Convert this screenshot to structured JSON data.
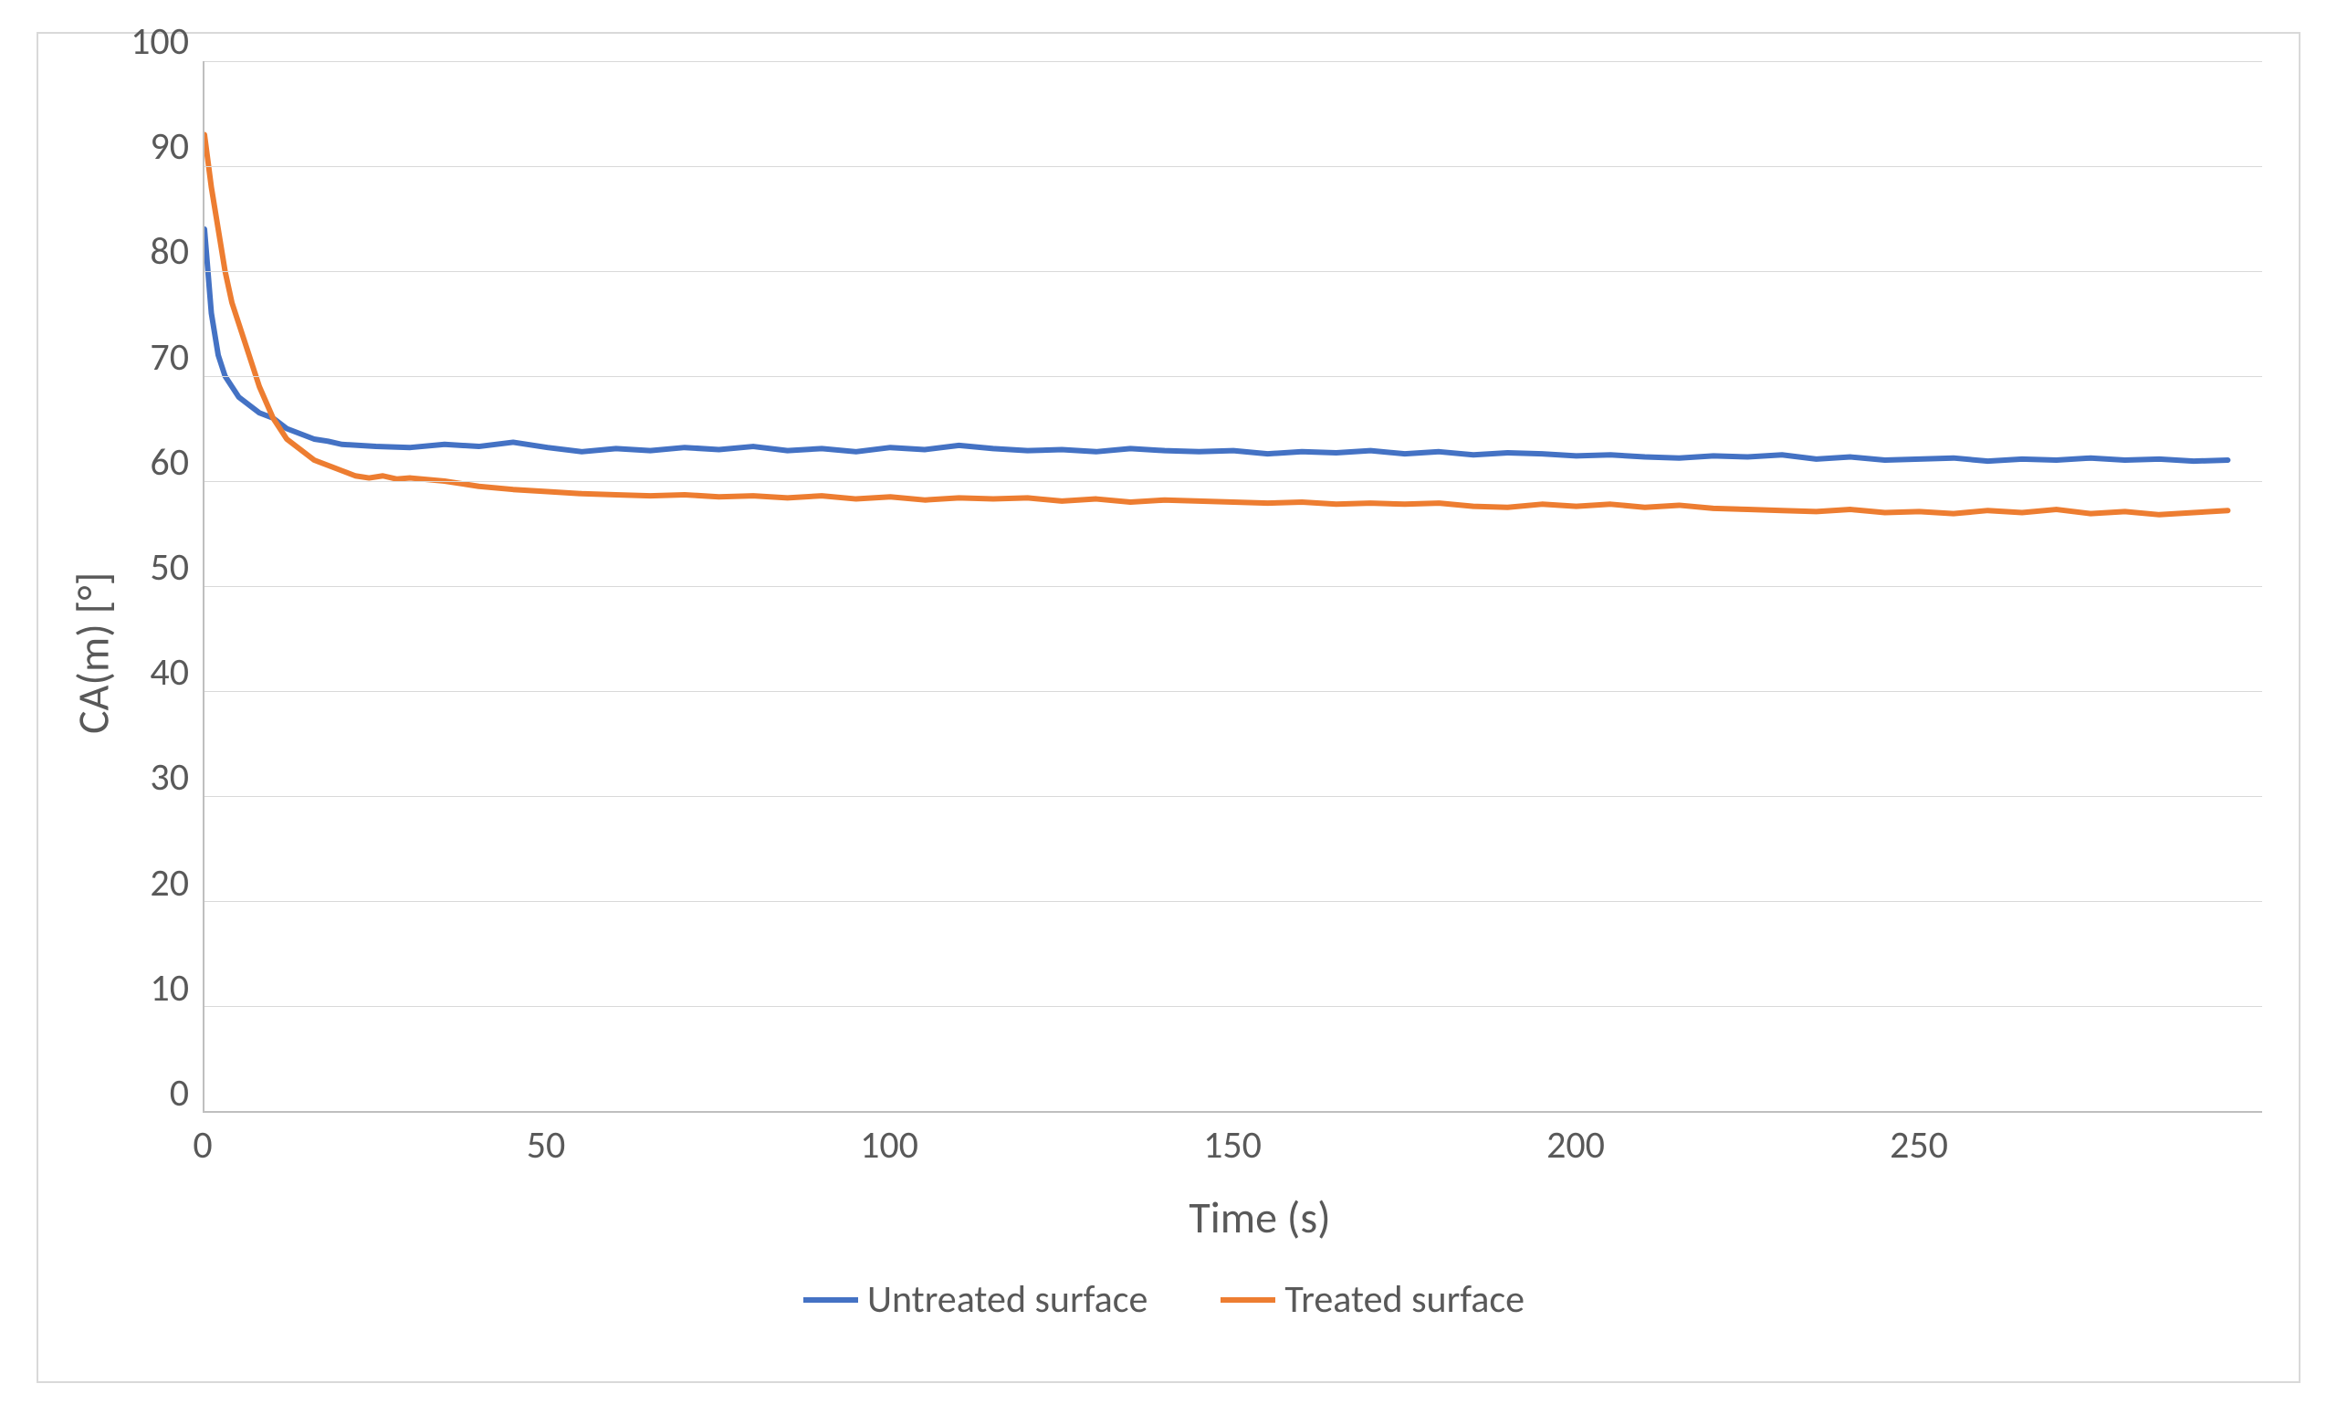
{
  "chart": {
    "type": "line",
    "xlabel": "Time (s)",
    "ylabel": "CA(m) [°]",
    "xlim": [
      0,
      300
    ],
    "ylim": [
      0,
      100
    ],
    "xtick_step": 50,
    "ytick_step": 10,
    "xtick_labels": [
      "0",
      "50",
      "100",
      "150",
      "200",
      "250"
    ],
    "ytick_labels": [
      "0",
      "10",
      "20",
      "30",
      "40",
      "50",
      "60",
      "70",
      "80",
      "90",
      "100"
    ],
    "label_fontsize": 48,
    "tick_fontsize": 42,
    "background_color": "#ffffff",
    "grid_color": "#d9d9d9",
    "border_color": "#d9d9d9",
    "axis_color": "#bfbfbf",
    "text_color": "#595959",
    "line_width": 6,
    "legend_position": "bottom",
    "series": [
      {
        "name": "Untreated surface",
        "color": "#4472c4",
        "x": [
          0,
          1,
          2,
          3,
          4,
          5,
          6,
          7,
          8,
          10,
          12,
          14,
          16,
          18,
          20,
          25,
          30,
          35,
          40,
          45,
          50,
          55,
          60,
          65,
          70,
          75,
          80,
          85,
          90,
          95,
          100,
          105,
          110,
          115,
          120,
          125,
          130,
          135,
          140,
          145,
          150,
          155,
          160,
          165,
          170,
          175,
          180,
          185,
          190,
          195,
          200,
          205,
          210,
          215,
          220,
          225,
          230,
          235,
          240,
          245,
          250,
          255,
          260,
          265,
          270,
          275,
          280,
          285,
          290,
          295
        ],
        "y": [
          84,
          76,
          72,
          70,
          69,
          68,
          67.5,
          67,
          66.5,
          66,
          65,
          64.5,
          64,
          63.8,
          63.5,
          63.3,
          63.2,
          63.5,
          63.3,
          63.7,
          63.2,
          62.8,
          63.1,
          62.9,
          63.2,
          63.0,
          63.3,
          62.9,
          63.1,
          62.8,
          63.2,
          63.0,
          63.4,
          63.1,
          62.9,
          63.0,
          62.8,
          63.1,
          62.9,
          62.8,
          62.9,
          62.6,
          62.8,
          62.7,
          62.9,
          62.6,
          62.8,
          62.5,
          62.7,
          62.6,
          62.4,
          62.5,
          62.3,
          62.2,
          62.4,
          62.3,
          62.5,
          62.1,
          62.3,
          62.0,
          62.1,
          62.2,
          61.9,
          62.1,
          62.0,
          62.2,
          62.0,
          62.1,
          61.9,
          62.0
        ]
      },
      {
        "name": "Treated surface",
        "color": "#ed7d31",
        "x": [
          0,
          1,
          2,
          3,
          4,
          5,
          6,
          7,
          8,
          10,
          12,
          14,
          16,
          18,
          20,
          22,
          24,
          26,
          28,
          30,
          35,
          40,
          45,
          50,
          55,
          60,
          65,
          70,
          75,
          80,
          85,
          90,
          95,
          100,
          105,
          110,
          115,
          120,
          125,
          130,
          135,
          140,
          145,
          150,
          155,
          160,
          165,
          170,
          175,
          180,
          185,
          190,
          195,
          200,
          205,
          210,
          215,
          220,
          225,
          230,
          235,
          240,
          245,
          250,
          255,
          260,
          265,
          270,
          275,
          280,
          285,
          290,
          295
        ],
        "y": [
          93,
          88,
          84,
          80,
          77,
          75,
          73,
          71,
          69,
          66,
          64,
          63,
          62,
          61.5,
          61,
          60.5,
          60.3,
          60.5,
          60.2,
          60.3,
          60.0,
          59.5,
          59.2,
          59.0,
          58.8,
          58.7,
          58.6,
          58.7,
          58.5,
          58.6,
          58.4,
          58.6,
          58.3,
          58.5,
          58.2,
          58.4,
          58.3,
          58.4,
          58.1,
          58.3,
          58.0,
          58.2,
          58.1,
          58.0,
          57.9,
          58.0,
          57.8,
          57.9,
          57.8,
          57.9,
          57.6,
          57.5,
          57.8,
          57.6,
          57.8,
          57.5,
          57.7,
          57.4,
          57.3,
          57.2,
          57.1,
          57.3,
          57.0,
          57.1,
          56.9,
          57.2,
          57.0,
          57.3,
          56.9,
          57.1,
          56.8,
          57.0,
          57.2
        ]
      }
    ]
  }
}
